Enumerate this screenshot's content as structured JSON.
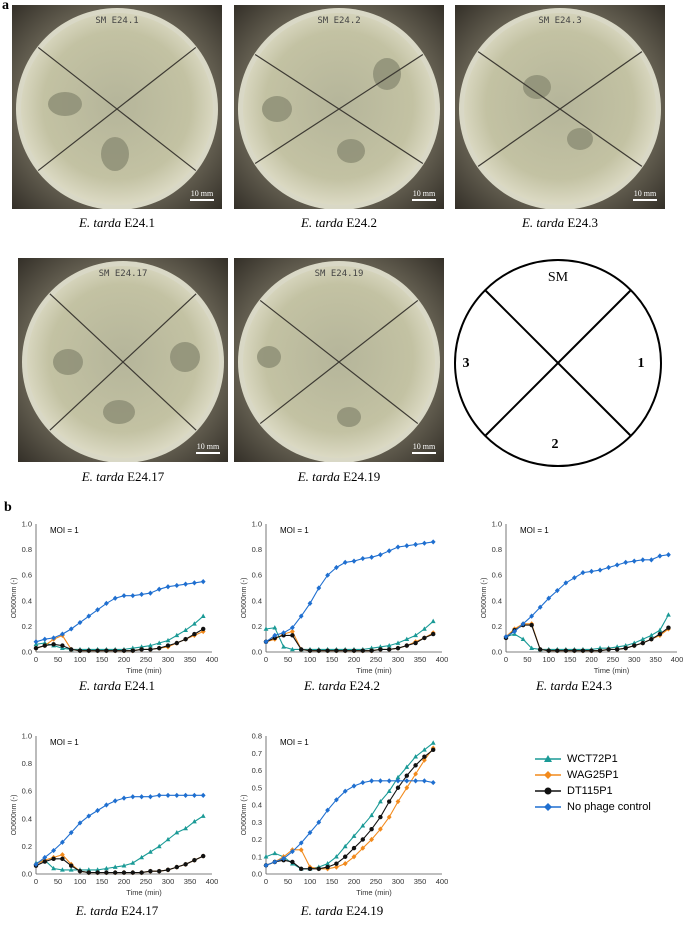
{
  "panels": {
    "a": "a",
    "b": "b"
  },
  "plates": [
    {
      "label_strain": "E. tarda",
      "label_id": "E24.1",
      "lid_text": "SM E24.1",
      "scale_text": "10 mm"
    },
    {
      "label_strain": "E. tarda",
      "label_id": "E24.2",
      "lid_text": "SM E24.2",
      "scale_text": "10 mm"
    },
    {
      "label_strain": "E. tarda",
      "label_id": "E24.3",
      "lid_text": "SM E24.3",
      "scale_text": "10 mm"
    },
    {
      "label_strain": "E. tarda",
      "label_id": "E24.17",
      "lid_text": "SM E24.17",
      "scale_text": "10 mm"
    },
    {
      "label_strain": "E. tarda",
      "label_id": "E24.19",
      "lid_text": "SM E24.19",
      "scale_text": "10 mm"
    }
  ],
  "schematic": {
    "top": "SM",
    "right": "1",
    "bottom": "2",
    "left": "3"
  },
  "legend": {
    "items": [
      {
        "name": "WCT72P1",
        "color": "#1a9a96",
        "marker": "triangle"
      },
      {
        "name": "WAG25P1",
        "color": "#f28a1c",
        "marker": "diamond"
      },
      {
        "name": "DT115P1",
        "color": "#111111",
        "marker": "circle"
      },
      {
        "name": "No phage control",
        "color": "#1f6fd0",
        "marker": "diamond"
      }
    ]
  },
  "chart_data": [
    {
      "type": "line",
      "title": "E. tarda E24.1",
      "annotation": "MOI  = 1",
      "xlabel": "Time (min)",
      "ylabel": "OD600nm (-)",
      "ylim": [
        0,
        1.0
      ],
      "xlim": [
        0,
        400
      ],
      "xticks": [
        0,
        50,
        100,
        150,
        200,
        250,
        300,
        350,
        400
      ],
      "yticks": [
        0.0,
        0.2,
        0.4,
        0.6,
        0.8,
        1.0
      ],
      "x": [
        0,
        20,
        40,
        60,
        80,
        100,
        120,
        140,
        160,
        180,
        200,
        220,
        240,
        260,
        280,
        300,
        320,
        340,
        360,
        380
      ],
      "series": [
        {
          "name": "WCT72P1",
          "values": [
            0.06,
            0.07,
            0.05,
            0.03,
            0.02,
            0.02,
            0.02,
            0.02,
            0.02,
            0.02,
            0.02,
            0.03,
            0.04,
            0.05,
            0.07,
            0.09,
            0.13,
            0.17,
            0.22,
            0.28
          ]
        },
        {
          "name": "WAG25P1",
          "values": [
            0.03,
            0.05,
            0.1,
            0.13,
            0.02,
            0.01,
            0.01,
            0.01,
            0.01,
            0.01,
            0.01,
            0.01,
            0.02,
            0.02,
            0.03,
            0.04,
            0.07,
            0.1,
            0.13,
            0.16
          ]
        },
        {
          "name": "DT115P1",
          "values": [
            0.03,
            0.05,
            0.06,
            0.05,
            0.02,
            0.01,
            0.01,
            0.01,
            0.01,
            0.01,
            0.01,
            0.01,
            0.02,
            0.02,
            0.03,
            0.05,
            0.07,
            0.1,
            0.14,
            0.18
          ]
        },
        {
          "name": "No phage control",
          "values": [
            0.08,
            0.1,
            0.11,
            0.14,
            0.18,
            0.23,
            0.28,
            0.33,
            0.38,
            0.42,
            0.44,
            0.44,
            0.45,
            0.46,
            0.49,
            0.51,
            0.52,
            0.53,
            0.54,
            0.55
          ]
        }
      ]
    },
    {
      "type": "line",
      "title": "E. tarda E24.2",
      "annotation": "MOI  = 1",
      "xlabel": "Time (min)",
      "ylabel": "OD600nm (-)",
      "ylim": [
        0,
        1.0
      ],
      "xlim": [
        0,
        400
      ],
      "xticks": [
        0,
        50,
        100,
        150,
        200,
        250,
        300,
        350,
        400
      ],
      "yticks": [
        0.0,
        0.2,
        0.4,
        0.6,
        0.8,
        1.0
      ],
      "x": [
        0,
        20,
        40,
        60,
        80,
        100,
        120,
        140,
        160,
        180,
        200,
        220,
        240,
        260,
        280,
        300,
        320,
        340,
        360,
        380
      ],
      "series": [
        {
          "name": "WCT72P1",
          "values": [
            0.18,
            0.19,
            0.04,
            0.02,
            0.02,
            0.02,
            0.02,
            0.02,
            0.02,
            0.02,
            0.02,
            0.02,
            0.03,
            0.04,
            0.05,
            0.07,
            0.1,
            0.13,
            0.18,
            0.24
          ]
        },
        {
          "name": "WAG25P1",
          "values": [
            0.08,
            0.1,
            0.14,
            0.16,
            0.02,
            0.01,
            0.01,
            0.01,
            0.01,
            0.01,
            0.01,
            0.01,
            0.01,
            0.02,
            0.02,
            0.03,
            0.05,
            0.08,
            0.11,
            0.15
          ]
        },
        {
          "name": "DT115P1",
          "values": [
            0.08,
            0.11,
            0.13,
            0.13,
            0.02,
            0.01,
            0.01,
            0.01,
            0.01,
            0.01,
            0.01,
            0.01,
            0.01,
            0.02,
            0.02,
            0.03,
            0.05,
            0.07,
            0.11,
            0.14
          ]
        },
        {
          "name": "No phage control",
          "values": [
            0.08,
            0.13,
            0.15,
            0.19,
            0.28,
            0.38,
            0.5,
            0.6,
            0.66,
            0.7,
            0.71,
            0.73,
            0.74,
            0.76,
            0.79,
            0.82,
            0.83,
            0.84,
            0.85,
            0.86
          ]
        }
      ]
    },
    {
      "type": "line",
      "title": "E. tarda E24.3",
      "annotation": "MOI  = 1",
      "xlabel": "Time (min)",
      "ylabel": "OD600nm (-)",
      "ylim": [
        0,
        1.0
      ],
      "xlim": [
        0,
        400
      ],
      "xticks": [
        0,
        50,
        100,
        150,
        200,
        250,
        300,
        350,
        400
      ],
      "yticks": [
        0.0,
        0.2,
        0.4,
        0.6,
        0.8,
        1.0
      ],
      "x": [
        0,
        20,
        40,
        60,
        80,
        100,
        120,
        140,
        160,
        180,
        200,
        220,
        240,
        260,
        280,
        300,
        320,
        340,
        360,
        380
      ],
      "series": [
        {
          "name": "WCT72P1",
          "values": [
            0.12,
            0.14,
            0.1,
            0.03,
            0.02,
            0.02,
            0.02,
            0.02,
            0.02,
            0.02,
            0.02,
            0.03,
            0.03,
            0.04,
            0.05,
            0.07,
            0.1,
            0.13,
            0.17,
            0.29
          ]
        },
        {
          "name": "WAG25P1",
          "values": [
            0.12,
            0.18,
            0.22,
            0.22,
            0.02,
            0.01,
            0.01,
            0.01,
            0.01,
            0.01,
            0.01,
            0.01,
            0.02,
            0.02,
            0.03,
            0.05,
            0.07,
            0.1,
            0.13,
            0.18
          ]
        },
        {
          "name": "DT115P1",
          "values": [
            0.11,
            0.17,
            0.21,
            0.21,
            0.02,
            0.01,
            0.01,
            0.01,
            0.01,
            0.01,
            0.01,
            0.01,
            0.02,
            0.02,
            0.03,
            0.05,
            0.07,
            0.1,
            0.14,
            0.19
          ]
        },
        {
          "name": "No phage control",
          "values": [
            0.12,
            0.16,
            0.22,
            0.28,
            0.35,
            0.42,
            0.48,
            0.54,
            0.58,
            0.62,
            0.63,
            0.64,
            0.66,
            0.68,
            0.7,
            0.71,
            0.72,
            0.72,
            0.75,
            0.76
          ]
        }
      ]
    },
    {
      "type": "line",
      "title": "E. tarda E24.17",
      "annotation": "MOI  = 1",
      "xlabel": "Time (min)",
      "ylabel": "OD600nm (-)",
      "ylim": [
        0,
        1.0
      ],
      "xlim": [
        0,
        400
      ],
      "xticks": [
        0,
        50,
        100,
        150,
        200,
        250,
        300,
        350,
        400
      ],
      "yticks": [
        0.0,
        0.2,
        0.4,
        0.6,
        0.8,
        1.0
      ],
      "x": [
        0,
        20,
        40,
        60,
        80,
        100,
        120,
        140,
        160,
        180,
        200,
        220,
        240,
        260,
        280,
        300,
        320,
        340,
        360,
        380
      ],
      "series": [
        {
          "name": "WCT72P1",
          "values": [
            0.08,
            0.1,
            0.04,
            0.03,
            0.03,
            0.03,
            0.03,
            0.03,
            0.04,
            0.05,
            0.06,
            0.08,
            0.12,
            0.16,
            0.2,
            0.25,
            0.3,
            0.33,
            0.38,
            0.42
          ]
        },
        {
          "name": "WAG25P1",
          "values": [
            0.07,
            0.1,
            0.12,
            0.14,
            0.07,
            0.02,
            0.01,
            0.01,
            0.01,
            0.01,
            0.01,
            0.01,
            0.01,
            0.02,
            0.02,
            0.03,
            0.05,
            0.07,
            0.1,
            0.13
          ]
        },
        {
          "name": "DT115P1",
          "values": [
            0.06,
            0.09,
            0.11,
            0.11,
            0.06,
            0.02,
            0.01,
            0.01,
            0.01,
            0.01,
            0.01,
            0.01,
            0.01,
            0.02,
            0.02,
            0.03,
            0.05,
            0.07,
            0.1,
            0.13
          ]
        },
        {
          "name": "No phage control",
          "values": [
            0.07,
            0.12,
            0.17,
            0.23,
            0.3,
            0.37,
            0.42,
            0.46,
            0.5,
            0.53,
            0.55,
            0.56,
            0.56,
            0.56,
            0.57,
            0.57,
            0.57,
            0.57,
            0.57,
            0.57
          ]
        }
      ]
    },
    {
      "type": "line",
      "title": "E. tarda E24.19",
      "annotation": "MOI  = 1",
      "xlabel": "Time (min)",
      "ylabel": "OD600nm (-)",
      "ylim": [
        0,
        0.8
      ],
      "xlim": [
        0,
        400
      ],
      "xticks": [
        0,
        50,
        100,
        150,
        200,
        250,
        300,
        350,
        400
      ],
      "yticks": [
        0.0,
        0.1,
        0.2,
        0.3,
        0.4,
        0.5,
        0.6,
        0.7,
        0.8
      ],
      "x": [
        0,
        20,
        40,
        60,
        80,
        100,
        120,
        140,
        160,
        180,
        200,
        220,
        240,
        260,
        280,
        300,
        320,
        340,
        360,
        380
      ],
      "series": [
        {
          "name": "WCT72P1",
          "values": [
            0.1,
            0.12,
            0.1,
            0.06,
            0.03,
            0.03,
            0.04,
            0.06,
            0.1,
            0.16,
            0.22,
            0.28,
            0.34,
            0.42,
            0.48,
            0.56,
            0.62,
            0.68,
            0.72,
            0.76
          ]
        },
        {
          "name": "WAG25P1",
          "values": [
            0.05,
            0.07,
            0.1,
            0.14,
            0.14,
            0.04,
            0.03,
            0.03,
            0.04,
            0.06,
            0.1,
            0.15,
            0.2,
            0.26,
            0.33,
            0.42,
            0.5,
            0.58,
            0.66,
            0.73
          ]
        },
        {
          "name": "DT115P1",
          "values": [
            0.05,
            0.07,
            0.08,
            0.07,
            0.03,
            0.03,
            0.03,
            0.04,
            0.06,
            0.1,
            0.15,
            0.2,
            0.26,
            0.33,
            0.42,
            0.5,
            0.57,
            0.63,
            0.68,
            0.72
          ]
        },
        {
          "name": "No phage control",
          "values": [
            0.05,
            0.07,
            0.09,
            0.13,
            0.18,
            0.24,
            0.3,
            0.37,
            0.43,
            0.48,
            0.51,
            0.53,
            0.54,
            0.54,
            0.54,
            0.54,
            0.54,
            0.54,
            0.54,
            0.53
          ]
        }
      ]
    }
  ]
}
